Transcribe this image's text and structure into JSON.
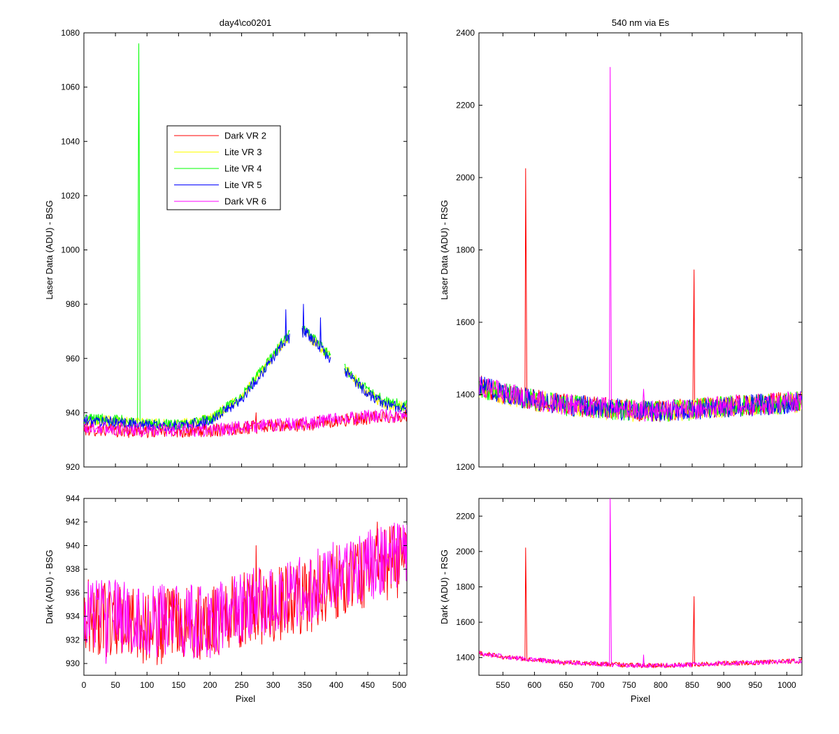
{
  "chart_data": [
    {
      "id": "top-left",
      "type": "line",
      "title": "day4\\co0201",
      "xlabel": "",
      "ylabel": "Laser Data (ADU) - BSG",
      "xlim": [
        0,
        512
      ],
      "ylim": [
        920,
        1080
      ],
      "xticks": [
        0,
        50,
        100,
        150,
        200,
        250,
        300,
        350,
        400,
        450,
        500
      ],
      "xticklabels_shown": false,
      "yticks": [
        920,
        940,
        960,
        980,
        1000,
        1020,
        1040,
        1060,
        1080
      ],
      "legend": {
        "placement": "upper-left-center",
        "entries": [
          "Dark VR 2",
          "Lite VR 3",
          "Lite VR 4",
          "Lite VR 5",
          "Dark VR 6"
        ]
      },
      "series": [
        {
          "name": "Dark VR 2",
          "color": "#ff0000",
          "baseline": [
            [
              0,
              934
            ],
            [
              100,
              933
            ],
            [
              200,
              933.5
            ],
            [
              250,
              934.5
            ],
            [
              300,
              935
            ],
            [
              350,
              935.5
            ],
            [
              400,
              937
            ],
            [
              450,
              938
            ],
            [
              512,
              939
            ]
          ],
          "noise": 2.5,
          "spikes": [
            [
              273,
              940
            ],
            [
              85,
              937
            ]
          ]
        },
        {
          "name": "Lite VR 3",
          "color": "#ffff00",
          "baseline": [
            [
              0,
              937.5
            ],
            [
              50,
              937
            ],
            [
              100,
              936
            ],
            [
              150,
              935.5
            ],
            [
              200,
              937.5
            ],
            [
              250,
              946
            ],
            [
              290,
              958
            ],
            [
              320,
              967
            ],
            [
              350,
              970
            ],
            [
              370,
              965
            ],
            [
              390,
              961
            ],
            [
              420,
              955
            ],
            [
              450,
              947
            ],
            [
              480,
              943
            ],
            [
              512,
              942
            ]
          ],
          "noise": 2,
          "gaps": [
            [
              327,
              345
            ],
            [
              392,
              412
            ]
          ],
          "spikes": []
        },
        {
          "name": "Lite VR 4",
          "color": "#00ff00",
          "baseline": [
            [
              0,
              938
            ],
            [
              50,
              937.5
            ],
            [
              100,
              936
            ],
            [
              150,
              935.5
            ],
            [
              200,
              937.5
            ],
            [
              250,
              946
            ],
            [
              290,
              958
            ],
            [
              320,
              968
            ],
            [
              350,
              971
            ],
            [
              370,
              966
            ],
            [
              390,
              961
            ],
            [
              420,
              955
            ],
            [
              450,
              948
            ],
            [
              480,
              944
            ],
            [
              512,
              942.5
            ]
          ],
          "noise": 2,
          "gaps": [
            [
              327,
              345
            ],
            [
              392,
              412
            ]
          ],
          "spikes": [
            [
              87,
              1076
            ],
            [
              88,
              1019
            ],
            [
              86,
              1005
            ]
          ]
        },
        {
          "name": "Lite VR 5",
          "color": "#0000ff",
          "baseline": [
            [
              0,
              937
            ],
            [
              50,
              936.5
            ],
            [
              100,
              935.5
            ],
            [
              150,
              935
            ],
            [
              200,
              937
            ],
            [
              250,
              945
            ],
            [
              290,
              957
            ],
            [
              320,
              967
            ],
            [
              350,
              970
            ],
            [
              370,
              965
            ],
            [
              390,
              960
            ],
            [
              420,
              954
            ],
            [
              450,
              947
            ],
            [
              480,
              943
            ],
            [
              512,
              941.5
            ]
          ],
          "noise": 2,
          "gaps": [
            [
              327,
              345
            ],
            [
              392,
              412
            ]
          ],
          "spikes": [
            [
              320,
              978
            ],
            [
              348,
              980
            ],
            [
              375,
              975
            ]
          ]
        },
        {
          "name": "Dark VR 6",
          "color": "#ff00ff",
          "baseline": [
            [
              0,
              934.5
            ],
            [
              100,
              933.5
            ],
            [
              200,
              933.5
            ],
            [
              250,
              934.5
            ],
            [
              300,
              935.5
            ],
            [
              350,
              936
            ],
            [
              400,
              937.5
            ],
            [
              450,
              938.5
            ],
            [
              512,
              939
            ]
          ],
          "noise": 2.5,
          "spikes": []
        }
      ]
    },
    {
      "id": "top-right",
      "type": "line",
      "title": "540 nm via Es",
      "xlabel": "",
      "ylabel": "Laser Data (ADU) - RSG",
      "xlim": [
        512,
        1024
      ],
      "ylim": [
        1200,
        2400
      ],
      "xticks": [
        550,
        600,
        650,
        700,
        750,
        800,
        850,
        900,
        950,
        1000
      ],
      "xticklabels_shown": false,
      "yticks": [
        1200,
        1400,
        1600,
        1800,
        2000,
        2200,
        2400
      ],
      "series": [
        {
          "name": "Dark VR 2",
          "color": "#ff0000",
          "baseline": [
            [
              512,
              1425
            ],
            [
              560,
              1400
            ],
            [
              600,
              1385
            ],
            [
              650,
              1372
            ],
            [
              700,
              1365
            ],
            [
              750,
              1357
            ],
            [
              800,
              1355
            ],
            [
              850,
              1360
            ],
            [
              900,
              1368
            ],
            [
              950,
              1372
            ],
            [
              1000,
              1378
            ],
            [
              1024,
              1382
            ]
          ],
          "noise": 30,
          "spikes": [
            [
              586,
              2025
            ],
            [
              587,
              1735
            ],
            [
              853,
              1745
            ],
            [
              852,
              1560
            ]
          ]
        },
        {
          "name": "Lite VR 3",
          "color": "#ffff00",
          "baseline": [
            [
              512,
              1420
            ],
            [
              560,
              1398
            ],
            [
              600,
              1383
            ],
            [
              650,
              1370
            ],
            [
              700,
              1362
            ],
            [
              750,
              1355
            ],
            [
              800,
              1353
            ],
            [
              850,
              1358
            ],
            [
              900,
              1366
            ],
            [
              950,
              1370
            ],
            [
              1000,
              1376
            ],
            [
              1024,
              1380
            ]
          ],
          "noise": 30,
          "spikes": []
        },
        {
          "name": "Lite VR 4",
          "color": "#00ff00",
          "baseline": [
            [
              512,
              1422
            ],
            [
              560,
              1399
            ],
            [
              600,
              1384
            ],
            [
              650,
              1371
            ],
            [
              700,
              1363
            ],
            [
              750,
              1356
            ],
            [
              800,
              1354
            ],
            [
              850,
              1359
            ],
            [
              900,
              1367
            ],
            [
              950,
              1371
            ],
            [
              1000,
              1377
            ],
            [
              1024,
              1381
            ]
          ],
          "noise": 30,
          "spikes": []
        },
        {
          "name": "Lite VR 5",
          "color": "#0000ff",
          "baseline": [
            [
              512,
              1424
            ],
            [
              560,
              1400
            ],
            [
              600,
              1385
            ],
            [
              650,
              1372
            ],
            [
              700,
              1364
            ],
            [
              750,
              1356
            ],
            [
              800,
              1354
            ],
            [
              850,
              1359
            ],
            [
              900,
              1367
            ],
            [
              950,
              1371
            ],
            [
              1000,
              1377
            ],
            [
              1024,
              1381
            ]
          ],
          "noise": 30,
          "spikes": []
        },
        {
          "name": "Dark VR 6",
          "color": "#ff00ff",
          "baseline": [
            [
              512,
              1425
            ],
            [
              560,
              1401
            ],
            [
              600,
              1386
            ],
            [
              650,
              1373
            ],
            [
              700,
              1365
            ],
            [
              750,
              1357
            ],
            [
              800,
              1355
            ],
            [
              850,
              1360
            ],
            [
              900,
              1368
            ],
            [
              950,
              1372
            ],
            [
              1000,
              1378
            ],
            [
              1024,
              1382
            ]
          ],
          "noise": 30,
          "spikes": [
            [
              720,
              2305
            ],
            [
              721,
              1840
            ],
            [
              773,
              1415
            ]
          ]
        }
      ]
    },
    {
      "id": "bottom-left",
      "type": "line",
      "title": "",
      "xlabel": "Pixel",
      "ylabel": "Dark (ADU) - BSG",
      "xlim": [
        0,
        512
      ],
      "ylim": [
        929,
        944
      ],
      "xticks": [
        0,
        50,
        100,
        150,
        200,
        250,
        300,
        350,
        400,
        450,
        500
      ],
      "xticklabels_shown": true,
      "yticks": [
        930,
        932,
        934,
        936,
        938,
        940,
        942,
        944
      ],
      "series": [
        {
          "name": "Dark VR 2",
          "color": "#ff0000",
          "baseline": [
            [
              0,
              934
            ],
            [
              100,
              933
            ],
            [
              200,
              933.5
            ],
            [
              250,
              934.5
            ],
            [
              300,
              935
            ],
            [
              350,
              935.5
            ],
            [
              400,
              937
            ],
            [
              450,
              938
            ],
            [
              512,
              939
            ]
          ],
          "noise": 3.2,
          "spikes": [
            [
              273,
              940
            ],
            [
              465,
              942
            ],
            [
              510,
              941
            ]
          ]
        },
        {
          "name": "Dark VR 6",
          "color": "#ff00ff",
          "baseline": [
            [
              0,
              934.5
            ],
            [
              100,
              933.5
            ],
            [
              200,
              933.5
            ],
            [
              250,
              934.5
            ],
            [
              300,
              935.5
            ],
            [
              350,
              936
            ],
            [
              400,
              937.5
            ],
            [
              450,
              938.5
            ],
            [
              512,
              939
            ]
          ],
          "noise": 3.2,
          "spikes": [
            [
              35,
              930
            ]
          ]
        }
      ]
    },
    {
      "id": "bottom-right",
      "type": "line",
      "title": "",
      "xlabel": "Pixel",
      "ylabel": "Dark (ADU) - RSG",
      "xlim": [
        512,
        1024
      ],
      "ylim": [
        1300,
        2300
      ],
      "xticks": [
        550,
        600,
        650,
        700,
        750,
        800,
        850,
        900,
        950,
        1000
      ],
      "xticklabels_shown": true,
      "yticks": [
        1400,
        1600,
        1800,
        2000,
        2200
      ],
      "series": [
        {
          "name": "Dark VR 2",
          "color": "#ff0000",
          "baseline": [
            [
              512,
              1425
            ],
            [
              560,
              1400
            ],
            [
              600,
              1385
            ],
            [
              650,
              1372
            ],
            [
              700,
              1365
            ],
            [
              750,
              1357
            ],
            [
              800,
              1355
            ],
            [
              850,
              1360
            ],
            [
              900,
              1368
            ],
            [
              950,
              1372
            ],
            [
              1000,
              1378
            ],
            [
              1024,
              1382
            ]
          ],
          "noise": 14,
          "spikes": [
            [
              586,
              2020
            ],
            [
              587,
              1730
            ],
            [
              853,
              1745
            ],
            [
              852,
              1555
            ]
          ]
        },
        {
          "name": "Dark VR 6",
          "color": "#ff00ff",
          "baseline": [
            [
              512,
              1425
            ],
            [
              560,
              1401
            ],
            [
              600,
              1386
            ],
            [
              650,
              1373
            ],
            [
              700,
              1365
            ],
            [
              750,
              1357
            ],
            [
              800,
              1355
            ],
            [
              850,
              1360
            ],
            [
              900,
              1368
            ],
            [
              950,
              1372
            ],
            [
              1000,
              1378
            ],
            [
              1024,
              1382
            ]
          ],
          "noise": 14,
          "spikes": [
            [
              720,
              2300
            ],
            [
              721,
              1840
            ],
            [
              773,
              1415
            ]
          ]
        }
      ]
    }
  ]
}
